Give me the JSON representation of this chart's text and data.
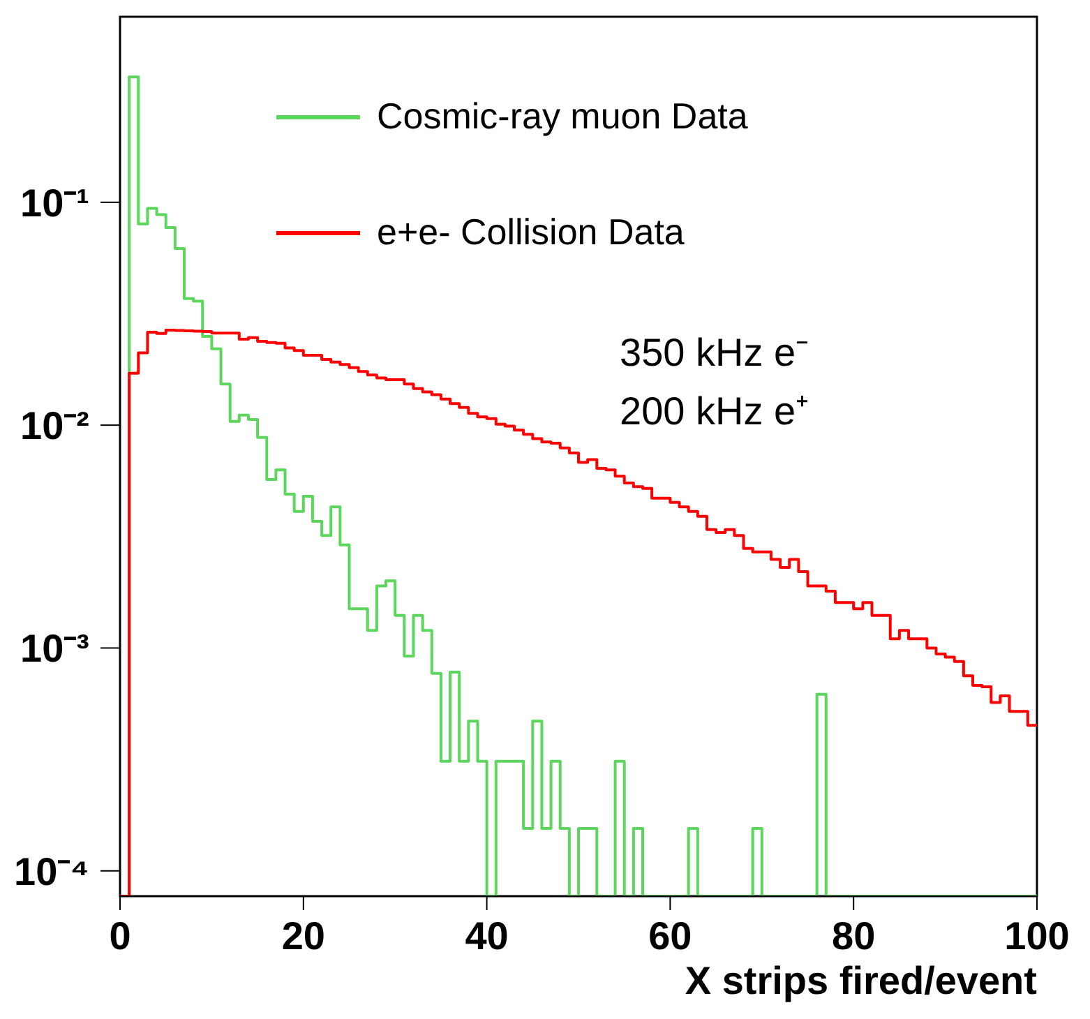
{
  "chart_data": {
    "type": "histogram",
    "xlabel": "X strips fired/event",
    "bins": [
      0,
      1,
      2,
      3,
      4,
      5,
      6,
      7,
      8,
      9,
      10,
      11,
      12,
      13,
      14,
      15,
      16,
      17,
      18,
      19,
      20,
      21,
      22,
      23,
      24,
      25,
      26,
      27,
      28,
      29,
      30,
      31,
      32,
      33,
      34,
      35,
      36,
      37,
      38,
      39,
      40,
      41,
      42,
      43,
      44,
      45,
      46,
      47,
      48,
      49,
      50,
      51,
      52,
      53,
      54,
      55,
      56,
      57,
      58,
      59,
      60,
      61,
      62,
      63,
      64,
      65,
      66,
      67,
      68,
      69,
      70,
      71,
      72,
      73,
      74,
      75,
      76,
      77,
      78,
      79,
      80,
      81,
      82,
      83,
      84,
      85,
      86,
      87,
      88,
      89,
      90,
      91,
      92,
      93,
      94,
      95,
      96,
      97,
      98,
      99,
      100
    ],
    "series": [
      {
        "name": "Cosmic-ray muon Data",
        "color": "#5cd65c",
        "values": [
          null,
          0.365,
          0.08,
          0.094,
          0.088,
          0.077,
          0.062,
          0.037,
          0.036,
          0.025,
          0.022,
          0.0153,
          0.0104,
          0.0111,
          0.0106,
          0.0088,
          0.0057,
          0.0063,
          0.0049,
          0.0041,
          0.0048,
          0.0037,
          0.0032,
          0.0043,
          0.0029,
          0.0015,
          0.0015,
          0.0012,
          0.0019,
          0.002,
          0.0014,
          0.00092,
          0.0014,
          0.0012,
          0.00077,
          0.00031,
          0.00078,
          0.00031,
          0.00047,
          0.00031,
          null,
          0.00031,
          0.00031,
          0.00031,
          0.000155,
          0.00047,
          0.000155,
          0.00031,
          0.000155,
          null,
          0.000155,
          0.000155,
          null,
          null,
          0.00031,
          null,
          0.000155,
          null,
          null,
          null,
          null,
          null,
          0.000155,
          null,
          null,
          null,
          null,
          null,
          null,
          0.000155,
          null,
          null,
          null,
          null,
          null,
          null,
          0.00062,
          null,
          null,
          null,
          null,
          null,
          null,
          null,
          null,
          null,
          null,
          null,
          null,
          null,
          null,
          null,
          null,
          null,
          null,
          null,
          null,
          null,
          null,
          null
        ]
      },
      {
        "name": "e+e- Collision Data",
        "color": "#ff0000",
        "values": [
          null,
          0.0171,
          0.0211,
          0.0261,
          0.0258,
          0.0267,
          0.0266,
          0.0265,
          0.0264,
          0.0263,
          0.0259,
          0.0259,
          0.0259,
          0.0243,
          0.0247,
          0.0238,
          0.0235,
          0.0233,
          0.0222,
          0.0216,
          0.0206,
          0.0206,
          0.0197,
          0.0192,
          0.0187,
          0.0181,
          0.0174,
          0.0168,
          0.0163,
          0.016,
          0.016,
          0.0153,
          0.0146,
          0.0141,
          0.0137,
          0.0131,
          0.0125,
          0.012,
          0.0113,
          0.0109,
          0.0107,
          0.0101,
          0.0099,
          0.0095,
          0.0091,
          0.0087,
          0.0084,
          0.0083,
          0.0079,
          0.0075,
          0.0068,
          0.007,
          0.0064,
          0.0063,
          0.0059,
          0.0055,
          0.0053,
          0.0052,
          0.0047,
          0.0047,
          0.0045,
          0.0043,
          0.0041,
          0.0039,
          0.0034,
          0.0033,
          0.0034,
          0.0032,
          0.0028,
          0.0027,
          0.0027,
          0.0025,
          0.0023,
          0.0025,
          0.0022,
          0.0019,
          0.0019,
          0.0018,
          0.0016,
          0.0016,
          0.0015,
          0.0016,
          0.0014,
          0.0014,
          0.0011,
          0.0012,
          0.0011,
          0.0011,
          0.001,
          0.00094,
          0.00091,
          0.00087,
          0.00075,
          0.00068,
          0.00067,
          0.00057,
          0.00061,
          0.00052,
          0.00052,
          0.00045
        ]
      }
    ],
    "xlim": [
      0,
      100
    ],
    "xticks": [
      0,
      20,
      40,
      60,
      80,
      100
    ],
    "ylim": [
      7.7e-05,
      0.68
    ],
    "yticks": [
      {
        "value": 0.1,
        "label": "10⁻¹"
      },
      {
        "value": 0.01,
        "label": "10⁻²"
      },
      {
        "value": 0.001,
        "label": "10⁻³"
      },
      {
        "value": 0.0001,
        "label": "10⁻⁴"
      }
    ],
    "log": true,
    "grid": false,
    "legend": "top",
    "marker": "none",
    "line_style": "solid",
    "annotations": [
      "350 kHz e⁻",
      "200 kHz e⁺"
    ]
  }
}
